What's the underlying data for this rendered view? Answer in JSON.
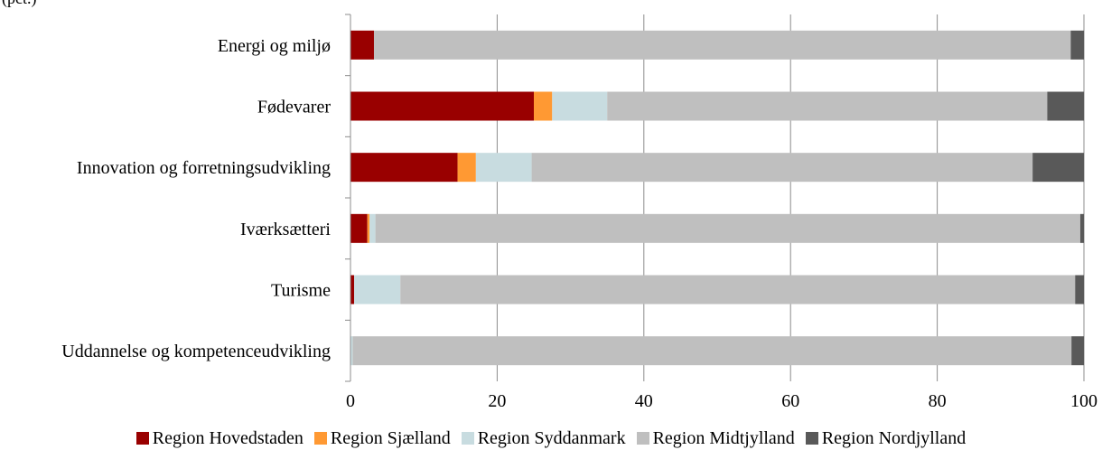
{
  "corner_text": "(pct.)",
  "colors": {
    "axis": "#8c8c8c",
    "grid": "#8c8c8c"
  },
  "chart_data": {
    "type": "bar",
    "orientation": "horizontal",
    "stacked": true,
    "title": "",
    "xlabel": "",
    "ylabel": "",
    "xlim": [
      0,
      100
    ],
    "xticks": [
      0,
      20,
      40,
      60,
      80,
      100
    ],
    "xtick_labels": [
      "0",
      "20",
      "40",
      "60",
      "80",
      "100"
    ],
    "grid": "vertical",
    "legend_position": "bottom",
    "categories": [
      "Energi og miljø",
      "Fødevarer",
      "Innovation og forretningsudvikling",
      "Iværksætteri",
      "Turisme",
      "Uddannelse og kompetenceudvikling"
    ],
    "series": [
      {
        "name": "Region Hovedstaden",
        "color": "#990000",
        "values": [
          3.2,
          25.0,
          14.6,
          2.3,
          0.5,
          0.0
        ]
      },
      {
        "name": "Region Sjælland",
        "color": "#ff9933",
        "values": [
          0.0,
          2.5,
          2.5,
          0.3,
          0.0,
          0.0
        ]
      },
      {
        "name": "Region Syddanmark",
        "color": "#c8dce0",
        "values": [
          0.0,
          7.5,
          7.6,
          0.8,
          6.3,
          0.3
        ]
      },
      {
        "name": "Region Midtjylland",
        "color": "#bfbfbf",
        "values": [
          95.0,
          60.0,
          68.3,
          96.1,
          92.0,
          98.0
        ]
      },
      {
        "name": "Region Nordjylland",
        "color": "#595959",
        "values": [
          1.8,
          5.0,
          7.0,
          0.5,
          1.2,
          1.7
        ]
      }
    ]
  }
}
